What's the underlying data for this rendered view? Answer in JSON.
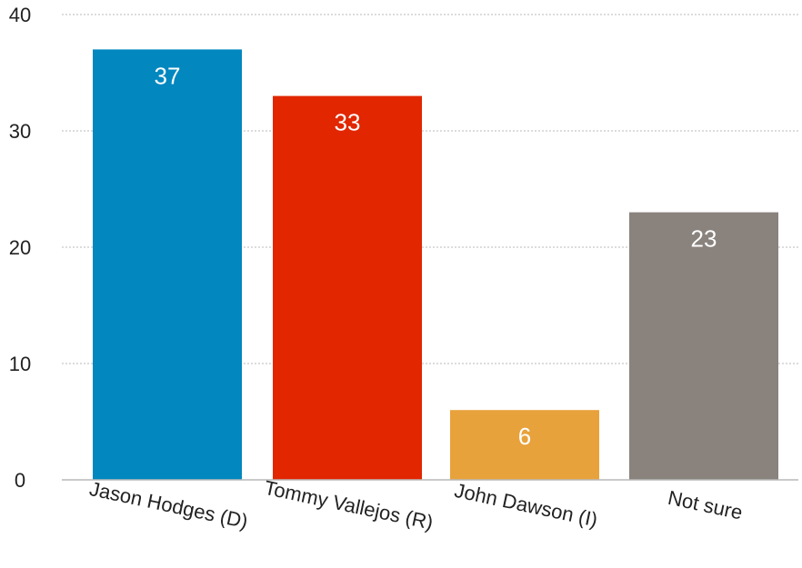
{
  "chart_data": {
    "type": "bar",
    "categories": [
      "Jason Hodges (D)",
      "Tommy Vallejos (R)",
      "John Dawson (I)",
      "Not sure"
    ],
    "values": [
      37,
      33,
      6,
      23
    ],
    "colors": [
      "#0287bf",
      "#e12600",
      "#e8a23b",
      "#89827d"
    ],
    "ylim": [
      0,
      40
    ],
    "yticks": [
      0,
      10,
      20,
      30,
      40
    ],
    "grid": true,
    "data_labels": [
      "37",
      "33",
      "6",
      "23"
    ]
  }
}
